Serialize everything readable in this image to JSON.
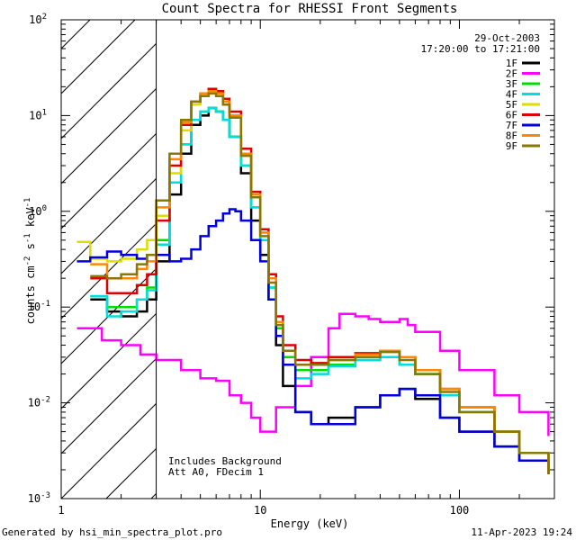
{
  "chart_data": {
    "type": "line",
    "title": "Count Spectra for RHESSI Front Segments",
    "xlabel": "Energy (keV)",
    "ylabel_parts": {
      "base": "counts cm",
      "exp1": "-2",
      "mid": " s",
      "exp2": "-1",
      "unit": " keV",
      "exp3": "-1"
    },
    "xscale": "log",
    "yscale": "log",
    "xlim": [
      1,
      300
    ],
    "ylim": [
      0.001,
      100
    ],
    "x_tick_labels": [
      {
        "value": 1,
        "label": "1"
      },
      {
        "value": 10,
        "label": "10"
      },
      {
        "value": 100,
        "label": "100"
      }
    ],
    "y_tick_labels": [
      {
        "value": 100,
        "base": "10",
        "exp": "2"
      },
      {
        "value": 10,
        "base": "10",
        "exp": "1"
      },
      {
        "value": 1,
        "base": "10",
        "exp": "0"
      },
      {
        "value": 0.1,
        "base": "10",
        "exp": "-1"
      },
      {
        "value": 0.01,
        "base": "10",
        "exp": "-2"
      },
      {
        "value": 0.001,
        "base": "10",
        "exp": "-3"
      }
    ],
    "hatched_region_keV": [
      1,
      3
    ],
    "date": "29-Oct-2003",
    "time_range": "17:20:00 to 17:21:00",
    "annotations": [
      "Includes Background",
      "Att A0, FDecim 1"
    ],
    "series": [
      {
        "name": "1F",
        "color": "#000000",
        "points": [
          [
            1.4,
            0.12
          ],
          [
            1.7,
            0.09
          ],
          [
            2.0,
            0.08
          ],
          [
            2.4,
            0.09
          ],
          [
            2.7,
            0.12
          ],
          [
            3.0,
            0.3
          ],
          [
            3.5,
            1.5
          ],
          [
            4.0,
            4
          ],
          [
            4.5,
            8
          ],
          [
            5.0,
            10
          ],
          [
            5.5,
            12
          ],
          [
            6.0,
            11
          ],
          [
            6.5,
            9
          ],
          [
            7.0,
            6
          ],
          [
            8.0,
            2.5
          ],
          [
            9.0,
            0.8
          ],
          [
            10.0,
            0.35
          ],
          [
            11.0,
            0.12
          ],
          [
            12.0,
            0.04
          ],
          [
            13.0,
            0.015
          ],
          [
            15.0,
            0.008
          ],
          [
            18.0,
            0.006
          ],
          [
            22.0,
            0.007
          ],
          [
            30.0,
            0.009
          ],
          [
            40.0,
            0.012
          ],
          [
            50.0,
            0.014
          ],
          [
            60.0,
            0.011
          ],
          [
            80.0,
            0.007
          ],
          [
            100.0,
            0.005
          ],
          [
            150.0,
            0.0035
          ],
          [
            200.0,
            0.0025
          ],
          [
            280.0,
            0.0018
          ]
        ]
      },
      {
        "name": "2F",
        "color": "#ff00ff",
        "points": [
          [
            1.2,
            0.06
          ],
          [
            1.6,
            0.045
          ],
          [
            2.0,
            0.04
          ],
          [
            2.5,
            0.032
          ],
          [
            3.0,
            0.028
          ],
          [
            4.0,
            0.022
          ],
          [
            5.0,
            0.018
          ],
          [
            6.0,
            0.017
          ],
          [
            7.0,
            0.012
          ],
          [
            8.0,
            0.01
          ],
          [
            9.0,
            0.007
          ],
          [
            10.0,
            0.005
          ],
          [
            12.0,
            0.009
          ],
          [
            15.0,
            0.015
          ],
          [
            18.0,
            0.03
          ],
          [
            22.0,
            0.06
          ],
          [
            25.0,
            0.085
          ],
          [
            30.0,
            0.08
          ],
          [
            35.0,
            0.075
          ],
          [
            40.0,
            0.07
          ],
          [
            45.0,
            0.07
          ],
          [
            50.0,
            0.075
          ],
          [
            55.0,
            0.065
          ],
          [
            60.0,
            0.055
          ],
          [
            80.0,
            0.035
          ],
          [
            100.0,
            0.022
          ],
          [
            150.0,
            0.012
          ],
          [
            200.0,
            0.008
          ],
          [
            280.0,
            0.0045
          ]
        ]
      },
      {
        "name": "3F",
        "color": "#00dd00",
        "points": [
          [
            1.4,
            0.13
          ],
          [
            1.7,
            0.1
          ],
          [
            2.0,
            0.1
          ],
          [
            2.4,
            0.12
          ],
          [
            2.7,
            0.16
          ],
          [
            3.0,
            0.5
          ],
          [
            3.5,
            2
          ],
          [
            4.0,
            5
          ],
          [
            4.5,
            9
          ],
          [
            5.0,
            11
          ],
          [
            5.5,
            12
          ],
          [
            6.0,
            11
          ],
          [
            6.5,
            9
          ],
          [
            7.0,
            6
          ],
          [
            8.0,
            3
          ],
          [
            9.0,
            1.1
          ],
          [
            10.0,
            0.5
          ],
          [
            11.0,
            0.16
          ],
          [
            12.0,
            0.06
          ],
          [
            13.0,
            0.03
          ],
          [
            15.0,
            0.022
          ],
          [
            18.0,
            0.022
          ],
          [
            22.0,
            0.025
          ],
          [
            30.0,
            0.028
          ],
          [
            40.0,
            0.03
          ],
          [
            50.0,
            0.025
          ],
          [
            60.0,
            0.02
          ],
          [
            80.0,
            0.012
          ],
          [
            100.0,
            0.008
          ],
          [
            150.0,
            0.005
          ],
          [
            200.0,
            0.003
          ],
          [
            280.0,
            0.0018
          ]
        ]
      },
      {
        "name": "4F",
        "color": "#00dddd",
        "points": [
          [
            1.4,
            0.13
          ],
          [
            1.7,
            0.08
          ],
          [
            2.0,
            0.09
          ],
          [
            2.4,
            0.12
          ],
          [
            2.7,
            0.15
          ],
          [
            3.0,
            0.45
          ],
          [
            3.5,
            2
          ],
          [
            4.0,
            5
          ],
          [
            4.5,
            9
          ],
          [
            5.0,
            11
          ],
          [
            5.5,
            12
          ],
          [
            6.0,
            11
          ],
          [
            6.5,
            9
          ],
          [
            7.0,
            6
          ],
          [
            8.0,
            3
          ],
          [
            9.0,
            1.1
          ],
          [
            10.0,
            0.5
          ],
          [
            11.0,
            0.16
          ],
          [
            12.0,
            0.05
          ],
          [
            13.0,
            0.025
          ],
          [
            15.0,
            0.018
          ],
          [
            18.0,
            0.02
          ],
          [
            22.0,
            0.024
          ],
          [
            30.0,
            0.028
          ],
          [
            40.0,
            0.03
          ],
          [
            50.0,
            0.025
          ],
          [
            60.0,
            0.02
          ],
          [
            80.0,
            0.012
          ],
          [
            100.0,
            0.008
          ],
          [
            150.0,
            0.005
          ],
          [
            200.0,
            0.003
          ],
          [
            280.0,
            0.0018
          ]
        ]
      },
      {
        "name": "5F",
        "color": "#dddd00",
        "points": [
          [
            1.2,
            0.48
          ],
          [
            1.4,
            0.32
          ],
          [
            1.7,
            0.3
          ],
          [
            2.0,
            0.32
          ],
          [
            2.4,
            0.4
          ],
          [
            2.7,
            0.5
          ],
          [
            3.0,
            0.9
          ],
          [
            3.5,
            2.5
          ],
          [
            4.0,
            7
          ],
          [
            4.5,
            13
          ],
          [
            5.0,
            16
          ],
          [
            5.5,
            18
          ],
          [
            6.0,
            17
          ],
          [
            6.5,
            14
          ],
          [
            7.0,
            10
          ],
          [
            8.0,
            4
          ],
          [
            9.0,
            1.5
          ],
          [
            10.0,
            0.6
          ],
          [
            11.0,
            0.2
          ],
          [
            12.0,
            0.07
          ],
          [
            13.0,
            0.035
          ],
          [
            15.0,
            0.025
          ],
          [
            18.0,
            0.025
          ],
          [
            22.0,
            0.028
          ],
          [
            30.0,
            0.032
          ],
          [
            40.0,
            0.035
          ],
          [
            50.0,
            0.03
          ],
          [
            60.0,
            0.022
          ],
          [
            80.0,
            0.014
          ],
          [
            100.0,
            0.009
          ],
          [
            150.0,
            0.005
          ],
          [
            200.0,
            0.003
          ],
          [
            280.0,
            0.0018
          ]
        ]
      },
      {
        "name": "6F",
        "color": "#dd0000",
        "points": [
          [
            1.4,
            0.2
          ],
          [
            1.7,
            0.14
          ],
          [
            2.0,
            0.14
          ],
          [
            2.4,
            0.17
          ],
          [
            2.7,
            0.22
          ],
          [
            3.0,
            0.8
          ],
          [
            3.5,
            3
          ],
          [
            4.0,
            8
          ],
          [
            4.5,
            14
          ],
          [
            5.0,
            17
          ],
          [
            5.5,
            19
          ],
          [
            6.0,
            18
          ],
          [
            6.5,
            15
          ],
          [
            7.0,
            11
          ],
          [
            8.0,
            4.5
          ],
          [
            9.0,
            1.6
          ],
          [
            10.0,
            0.65
          ],
          [
            11.0,
            0.22
          ],
          [
            12.0,
            0.08
          ],
          [
            13.0,
            0.04
          ],
          [
            15.0,
            0.028
          ],
          [
            18.0,
            0.026
          ],
          [
            22.0,
            0.03
          ],
          [
            30.0,
            0.033
          ],
          [
            40.0,
            0.035
          ],
          [
            50.0,
            0.03
          ],
          [
            60.0,
            0.022
          ],
          [
            80.0,
            0.014
          ],
          [
            100.0,
            0.009
          ],
          [
            150.0,
            0.005
          ],
          [
            200.0,
            0.003
          ],
          [
            280.0,
            0.0018
          ]
        ]
      },
      {
        "name": "7F",
        "color": "#0000dd",
        "points": [
          [
            1.2,
            0.3
          ],
          [
            1.4,
            0.33
          ],
          [
            1.7,
            0.38
          ],
          [
            2.0,
            0.35
          ],
          [
            2.4,
            0.32
          ],
          [
            2.7,
            0.35
          ],
          [
            3.0,
            0.35
          ],
          [
            3.5,
            0.3
          ],
          [
            4.0,
            0.32
          ],
          [
            4.5,
            0.4
          ],
          [
            5.0,
            0.55
          ],
          [
            5.5,
            0.7
          ],
          [
            6.0,
            0.8
          ],
          [
            6.5,
            0.95
          ],
          [
            7.0,
            1.05
          ],
          [
            7.5,
            1.0
          ],
          [
            8.0,
            0.8
          ],
          [
            9.0,
            0.5
          ],
          [
            10.0,
            0.3
          ],
          [
            11.0,
            0.12
          ],
          [
            12.0,
            0.05
          ],
          [
            13.0,
            0.025
          ],
          [
            15.0,
            0.008
          ],
          [
            18.0,
            0.006
          ],
          [
            22.0,
            0.006
          ],
          [
            30.0,
            0.009
          ],
          [
            40.0,
            0.012
          ],
          [
            50.0,
            0.014
          ],
          [
            60.0,
            0.012
          ],
          [
            80.0,
            0.007
          ],
          [
            100.0,
            0.005
          ],
          [
            150.0,
            0.0035
          ],
          [
            200.0,
            0.0025
          ],
          [
            280.0,
            0.0018
          ]
        ]
      },
      {
        "name": "8F",
        "color": "#ff8800",
        "points": [
          [
            1.4,
            0.28
          ],
          [
            1.7,
            0.2
          ],
          [
            2.0,
            0.2
          ],
          [
            2.4,
            0.25
          ],
          [
            2.7,
            0.3
          ],
          [
            3.0,
            1.1
          ],
          [
            3.5,
            3.5
          ],
          [
            4.0,
            8.5
          ],
          [
            4.5,
            14
          ],
          [
            5.0,
            17
          ],
          [
            5.5,
            18
          ],
          [
            6.0,
            17
          ],
          [
            6.5,
            14
          ],
          [
            7.0,
            10
          ],
          [
            8.0,
            4
          ],
          [
            9.0,
            1.5
          ],
          [
            10.0,
            0.6
          ],
          [
            11.0,
            0.2
          ],
          [
            12.0,
            0.07
          ],
          [
            13.0,
            0.035
          ],
          [
            15.0,
            0.025
          ],
          [
            18.0,
            0.025
          ],
          [
            22.0,
            0.028
          ],
          [
            30.0,
            0.032
          ],
          [
            40.0,
            0.035
          ],
          [
            50.0,
            0.03
          ],
          [
            60.0,
            0.022
          ],
          [
            80.0,
            0.014
          ],
          [
            100.0,
            0.009
          ],
          [
            150.0,
            0.005
          ],
          [
            200.0,
            0.003
          ],
          [
            280.0,
            0.0018
          ]
        ]
      },
      {
        "name": "9F",
        "color": "#887700",
        "points": [
          [
            1.4,
            0.21
          ],
          [
            1.7,
            0.2
          ],
          [
            2.0,
            0.22
          ],
          [
            2.4,
            0.28
          ],
          [
            2.7,
            0.35
          ],
          [
            3.0,
            1.3
          ],
          [
            3.5,
            4
          ],
          [
            4.0,
            9
          ],
          [
            4.5,
            14
          ],
          [
            5.0,
            16
          ],
          [
            5.5,
            17
          ],
          [
            6.0,
            16
          ],
          [
            6.5,
            13
          ],
          [
            7.0,
            9.5
          ],
          [
            8.0,
            3.8
          ],
          [
            9.0,
            1.4
          ],
          [
            10.0,
            0.55
          ],
          [
            11.0,
            0.18
          ],
          [
            12.0,
            0.065
          ],
          [
            13.0,
            0.035
          ],
          [
            15.0,
            0.025
          ],
          [
            18.0,
            0.025
          ],
          [
            22.0,
            0.028
          ],
          [
            30.0,
            0.03
          ],
          [
            40.0,
            0.034
          ],
          [
            50.0,
            0.028
          ],
          [
            60.0,
            0.02
          ],
          [
            80.0,
            0.013
          ],
          [
            100.0,
            0.008
          ],
          [
            150.0,
            0.005
          ],
          [
            200.0,
            0.003
          ],
          [
            280.0,
            0.0018
          ]
        ]
      }
    ]
  },
  "footer": {
    "generator": "Generated by hsi_min_spectra_plot.pro",
    "timestamp": "11-Apr-2023 19:24"
  }
}
